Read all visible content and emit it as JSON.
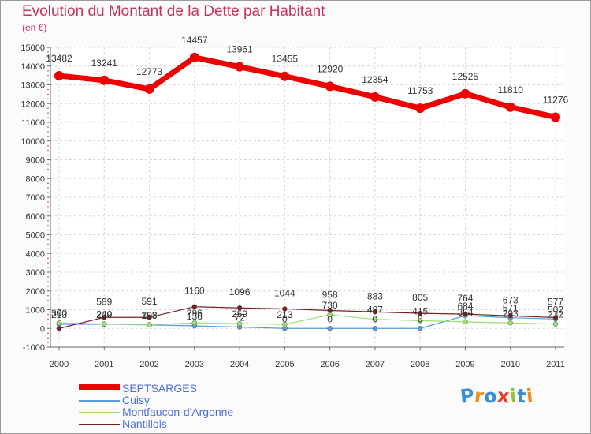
{
  "colors": {
    "title": "#c8325a",
    "legend_text": "#4f6fd8",
    "grid": "#d8d8d8",
    "axis": "#666666"
  },
  "logo": {
    "text": "Proxiti",
    "letters": [
      "P",
      "r",
      "o",
      "x",
      "i",
      "t",
      "i"
    ],
    "colors": [
      "#3a8fd0",
      "#f08a1c",
      "#3a8fd0",
      "#e8402a",
      "#8cc63f",
      "#3a8fd0",
      "#f08a1c"
    ]
  },
  "chart_data": {
    "type": "line",
    "title": "Evolution du Montant de la Dette par Habitant",
    "subtitle": "(en €)",
    "xlabel": "",
    "ylabel": "",
    "x": [
      2000,
      2001,
      2002,
      2003,
      2004,
      2005,
      2006,
      2007,
      2008,
      2009,
      2010,
      2011
    ],
    "x_tick_labels": [
      "2000",
      "2001",
      "2002",
      "2003",
      "2004",
      "2005",
      "2006",
      "2007",
      "2008",
      "2009",
      "2010",
      "2011"
    ],
    "ylim": [
      -1000,
      15000
    ],
    "y_ticks": [
      -1000,
      0,
      1000,
      2000,
      3000,
      4000,
      5000,
      6000,
      7000,
      8000,
      9000,
      10000,
      11000,
      12000,
      13000,
      14000,
      15000
    ],
    "y_tick_labels": [
      "-1000",
      "0",
      "1000",
      "2000",
      "3000",
      "4000",
      "5000",
      "6000",
      "7000",
      "8000",
      "9000",
      "10000",
      "11000",
      "12000",
      "13000",
      "14000",
      "15000"
    ],
    "grid": true,
    "legend_position": "bottom-left",
    "series": [
      {
        "name": "SEPTSARGES",
        "color": "#ee0000",
        "width": 7,
        "marker": 6,
        "values": [
          13482,
          13241,
          12773,
          14457,
          13961,
          13455,
          12920,
          12354,
          11753,
          12525,
          11810,
          11276
        ],
        "labels": [
          "13482",
          "13241",
          "12773",
          "14457",
          "13961",
          "13455",
          "12920",
          "12354",
          "11753",
          "12525",
          "11810",
          "11276"
        ]
      },
      {
        "name": "Cuisy",
        "color": "#5b9bd5",
        "width": 1.2,
        "marker": 3,
        "values": [
          213,
          229,
          188,
          136,
          72,
          0,
          0,
          0,
          0,
          684,
          571,
          502
        ],
        "labels": [
          "213",
          "229",
          "188",
          "136",
          "72",
          "0",
          "0",
          "0",
          "0",
          "684",
          "571",
          "502"
        ]
      },
      {
        "name": "Montfaucon-d'Argonne",
        "color": "#99e06f",
        "width": 1.2,
        "marker": 3,
        "values": [
          300,
          240,
          203,
          296,
          259,
          213,
          730,
          487,
          415,
          354,
          293,
          232
        ],
        "labels": [
          "300",
          "240",
          "203",
          "296",
          "259",
          "213",
          "730",
          "487",
          "415",
          "354",
          "293",
          "232"
        ]
      },
      {
        "name": "Nantillois",
        "color": "#7a2020",
        "width": 1.2,
        "marker": 3,
        "values": [
          0,
          589,
          591,
          1160,
          1096,
          1044,
          958,
          883,
          805,
          764,
          673,
          577
        ],
        "labels": [
          "0",
          "589",
          "591",
          "1160",
          "1096",
          "1044",
          "958",
          "883",
          "805",
          "764",
          "673",
          "577"
        ]
      }
    ]
  }
}
